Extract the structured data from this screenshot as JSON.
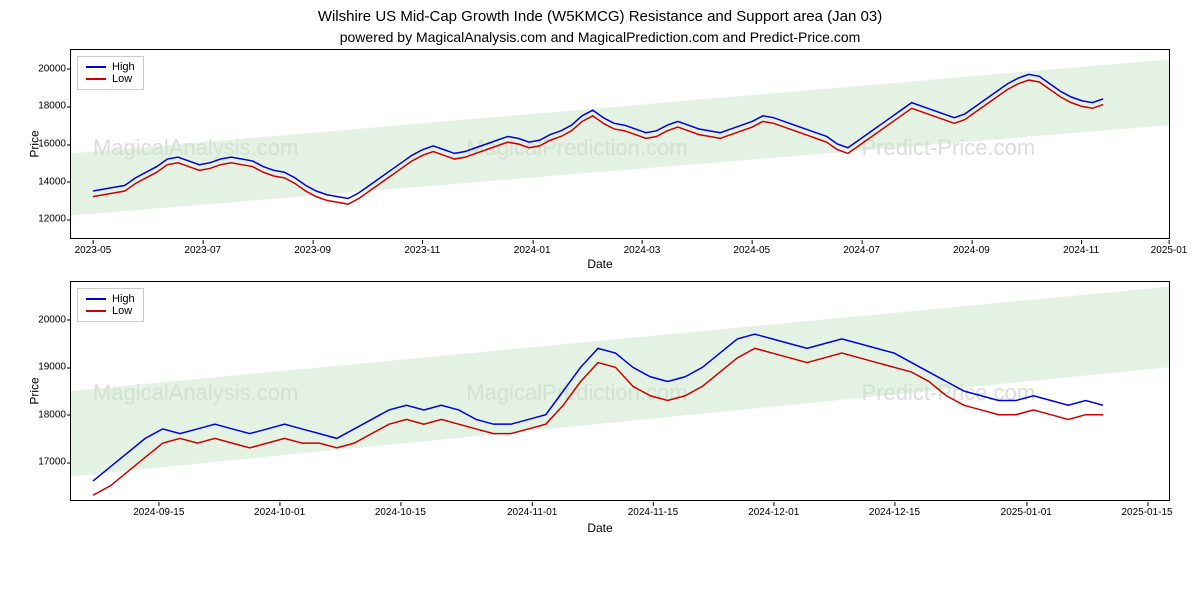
{
  "title": "Wilshire US Mid-Cap Growth Inde (W5KMCG) Resistance and Support area (Jan 03)",
  "subtitle": "powered by MagicalAnalysis.com and MagicalPrediction.com and Predict-Price.com",
  "watermarks": [
    "MagicalAnalysis.com",
    "MagicalPrediction.com",
    "Predict-Price.com"
  ],
  "legend": {
    "high": "High",
    "low": "Low"
  },
  "colors": {
    "high": "#0000dd",
    "low": "#cc0000",
    "band": "#c8e6c8",
    "border": "#000000",
    "watermark": "#dcdcdc",
    "bg": "#ffffff"
  },
  "line_width": 1.5,
  "chart1": {
    "ylabel": "Price",
    "xlabel": "Date",
    "ylim": [
      11000,
      21000
    ],
    "yticks": [
      12000,
      14000,
      16000,
      18000,
      20000
    ],
    "xticks": [
      "2023-05",
      "2023-07",
      "2023-09",
      "2023-11",
      "2024-01",
      "2024-03",
      "2024-05",
      "2024-07",
      "2024-09",
      "2024-11",
      "2025-01"
    ],
    "xtick_positions": [
      0.02,
      0.12,
      0.22,
      0.32,
      0.42,
      0.52,
      0.62,
      0.72,
      0.82,
      0.92,
      1.0
    ],
    "band": {
      "y1_start": 12200,
      "y1_end": 15500,
      "y2_start": 17000,
      "y2_end": 20500
    },
    "high": [
      13500,
      13600,
      13700,
      13800,
      14200,
      14500,
      14800,
      15200,
      15300,
      15100,
      14900,
      15000,
      15200,
      15300,
      15200,
      15100,
      14800,
      14600,
      14500,
      14200,
      13800,
      13500,
      13300,
      13200,
      13100,
      13400,
      13800,
      14200,
      14600,
      15000,
      15400,
      15700,
      15900,
      15700,
      15500,
      15600,
      15800,
      16000,
      16200,
      16400,
      16300,
      16100,
      16200,
      16500,
      16700,
      17000,
      17500,
      17800,
      17400,
      17100,
      17000,
      16800,
      16600,
      16700,
      17000,
      17200,
      17000,
      16800,
      16700,
      16600,
      16800,
      17000,
      17200,
      17500,
      17400,
      17200,
      17000,
      16800,
      16600,
      16400,
      16000,
      15800,
      16200,
      16600,
      17000,
      17400,
      17800,
      18200,
      18000,
      17800,
      17600,
      17400,
      17600,
      18000,
      18400,
      18800,
      19200,
      19500,
      19700,
      19600,
      19200,
      18800,
      18500,
      18300,
      18200,
      18400
    ],
    "low": [
      13200,
      13300,
      13400,
      13500,
      13900,
      14200,
      14500,
      14900,
      15000,
      14800,
      14600,
      14700,
      14900,
      15000,
      14900,
      14800,
      14500,
      14300,
      14200,
      13900,
      13500,
      13200,
      13000,
      12900,
      12800,
      13100,
      13500,
      13900,
      14300,
      14700,
      15100,
      15400,
      15600,
      15400,
      15200,
      15300,
      15500,
      15700,
      15900,
      16100,
      16000,
      15800,
      15900,
      16200,
      16400,
      16700,
      17200,
      17500,
      17100,
      16800,
      16700,
      16500,
      16300,
      16400,
      16700,
      16900,
      16700,
      16500,
      16400,
      16300,
      16500,
      16700,
      16900,
      17200,
      17100,
      16900,
      16700,
      16500,
      16300,
      16100,
      15700,
      15500,
      15900,
      16300,
      16700,
      17100,
      17500,
      17900,
      17700,
      17500,
      17300,
      17100,
      17300,
      17700,
      18100,
      18500,
      18900,
      19200,
      19400,
      19300,
      18900,
      18500,
      18200,
      18000,
      17900,
      18100
    ]
  },
  "chart2": {
    "ylabel": "Price",
    "xlabel": "Date",
    "ylim": [
      16200,
      20800
    ],
    "yticks": [
      17000,
      18000,
      19000,
      20000
    ],
    "xticks": [
      "2024-09-15",
      "2024-10-01",
      "2024-10-15",
      "2024-11-01",
      "2024-11-15",
      "2024-12-01",
      "2024-12-15",
      "2025-01-01",
      "2025-01-15"
    ],
    "xtick_positions": [
      0.08,
      0.19,
      0.3,
      0.42,
      0.53,
      0.64,
      0.75,
      0.87,
      0.98
    ],
    "band": {
      "y1_start": 16700,
      "y1_end": 18500,
      "y2_start": 19000,
      "y2_end": 20700
    },
    "high": [
      16600,
      16900,
      17200,
      17500,
      17700,
      17600,
      17700,
      17800,
      17700,
      17600,
      17700,
      17800,
      17700,
      17600,
      17500,
      17700,
      17900,
      18100,
      18200,
      18100,
      18200,
      18100,
      17900,
      17800,
      17800,
      17900,
      18000,
      18500,
      19000,
      19400,
      19300,
      19000,
      18800,
      18700,
      18800,
      19000,
      19300,
      19600,
      19700,
      19600,
      19500,
      19400,
      19500,
      19600,
      19500,
      19400,
      19300,
      19100,
      18900,
      18700,
      18500,
      18400,
      18300,
      18300,
      18400,
      18300,
      18200,
      18300,
      18200
    ],
    "low": [
      16300,
      16500,
      16800,
      17100,
      17400,
      17500,
      17400,
      17500,
      17400,
      17300,
      17400,
      17500,
      17400,
      17400,
      17300,
      17400,
      17600,
      17800,
      17900,
      17800,
      17900,
      17800,
      17700,
      17600,
      17600,
      17700,
      17800,
      18200,
      18700,
      19100,
      19000,
      18600,
      18400,
      18300,
      18400,
      18600,
      18900,
      19200,
      19400,
      19300,
      19200,
      19100,
      19200,
      19300,
      19200,
      19100,
      19000,
      18900,
      18700,
      18400,
      18200,
      18100,
      18000,
      18000,
      18100,
      18000,
      17900,
      18000,
      18000
    ]
  }
}
